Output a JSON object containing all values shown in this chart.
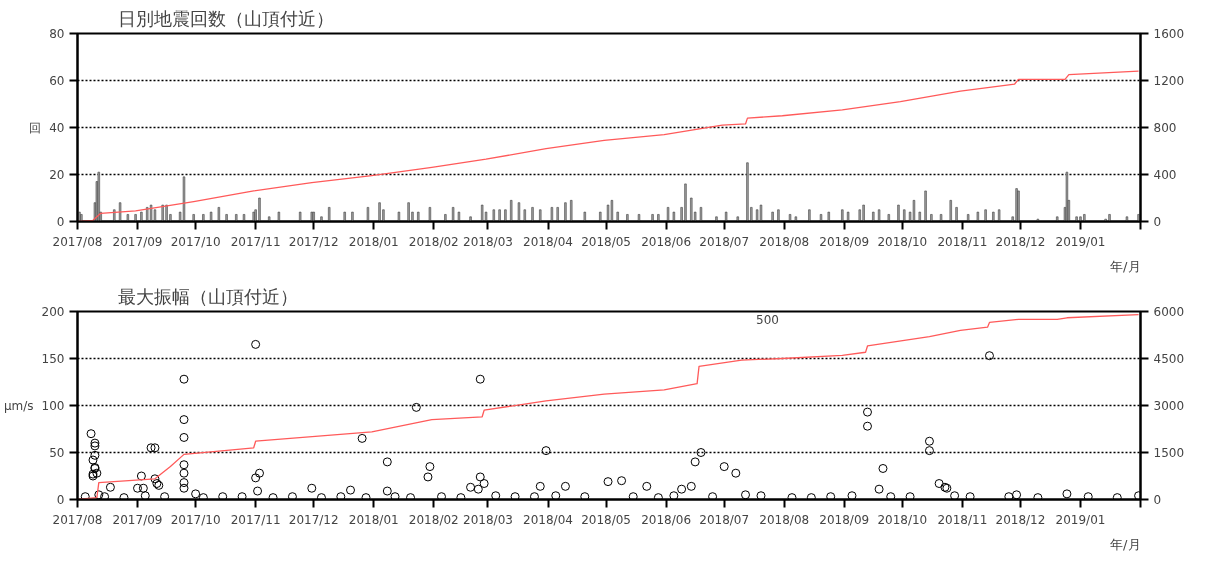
{
  "chart_data": [
    {
      "type": "bar",
      "title": "日別地震回数（山頂付近）",
      "ylabel": "回",
      "xlabel": "年/月",
      "grid": "y",
      "xlim": [
        "2017-08-01",
        "2019-02-01"
      ],
      "xticks": [
        {
          "value": "2017-08-01",
          "label": "2017/08"
        },
        {
          "value": "2017-09-01",
          "label": "2017/09"
        },
        {
          "value": "2017-10-01",
          "label": "2017/10"
        },
        {
          "value": "2017-11-01",
          "label": "2017/11"
        },
        {
          "value": "2017-12-01",
          "label": "2017/12"
        },
        {
          "value": "2018-01-01",
          "label": "2018/01"
        },
        {
          "value": "2018-02-01",
          "label": "2018/02"
        },
        {
          "value": "2018-03-01",
          "label": "2018/03"
        },
        {
          "value": "2018-04-01",
          "label": "2018/04"
        },
        {
          "value": "2018-05-01",
          "label": "2018/05"
        },
        {
          "value": "2018-06-01",
          "label": "2018/06"
        },
        {
          "value": "2018-07-01",
          "label": "2018/07"
        },
        {
          "value": "2018-08-01",
          "label": "2018/08"
        },
        {
          "value": "2018-09-01",
          "label": "2018/09"
        },
        {
          "value": "2018-10-01",
          "label": "2018/10"
        },
        {
          "value": "2018-11-01",
          "label": "2018/11"
        },
        {
          "value": "2018-12-01",
          "label": "2018/12"
        },
        {
          "value": "2019-01-01",
          "label": "2019/01"
        },
        {
          "value": "2019-02-01",
          "label": null
        }
      ],
      "ylim": [
        0,
        80
      ],
      "yticks": [
        0,
        20,
        40,
        60,
        80
      ],
      "y2lim": [
        0,
        1600
      ],
      "y2ticks": [
        0,
        400,
        800,
        1200,
        1600
      ],
      "series": [
        {
          "color": "#a0a0a0",
          "x": [
            "2017-08-02",
            "2017-08-03",
            "2017-08-10",
            "2017-08-11",
            "2017-08-12",
            "2017-08-13",
            "2017-08-20",
            "2017-08-23",
            "2017-08-27",
            "2017-08-31",
            "2017-09-03",
            "2017-09-06",
            "2017-09-08",
            "2017-09-10",
            "2017-09-14",
            "2017-09-16",
            "2017-09-18",
            "2017-09-23",
            "2017-09-25",
            "2017-09-30",
            "2017-10-05",
            "2017-10-09",
            "2017-10-13",
            "2017-10-17",
            "2017-10-22",
            "2017-10-26",
            "2017-10-31",
            "2017-11-01",
            "2017-11-03",
            "2017-11-08",
            "2017-11-13",
            "2017-11-24",
            "2017-11-30",
            "2017-12-01",
            "2017-12-05",
            "2017-12-09",
            "2017-12-17",
            "2017-12-21",
            "2017-12-29",
            "2018-01-04",
            "2018-01-06",
            "2018-01-14",
            "2018-01-19",
            "2018-01-21",
            "2018-01-24",
            "2018-01-30",
            "2018-02-07",
            "2018-02-11",
            "2018-02-14",
            "2018-02-20",
            "2018-02-26",
            "2018-02-28",
            "2018-03-04",
            "2018-03-07",
            "2018-03-10",
            "2018-03-13",
            "2018-03-17",
            "2018-03-20",
            "2018-03-24",
            "2018-03-28",
            "2018-04-03",
            "2018-04-06",
            "2018-04-10",
            "2018-04-13",
            "2018-04-20",
            "2018-04-28",
            "2018-05-02",
            "2018-05-04",
            "2018-05-07",
            "2018-05-12",
            "2018-05-18",
            "2018-05-25",
            "2018-05-28",
            "2018-06-02",
            "2018-06-05",
            "2018-06-09",
            "2018-06-11",
            "2018-06-14",
            "2018-06-16",
            "2018-06-19",
            "2018-06-27",
            "2018-07-02",
            "2018-07-08",
            "2018-07-13",
            "2018-07-15",
            "2018-07-18",
            "2018-07-20",
            "2018-07-26",
            "2018-07-29",
            "2018-08-04",
            "2018-08-07",
            "2018-08-14",
            "2018-08-20",
            "2018-08-24",
            "2018-08-31",
            "2018-09-03",
            "2018-09-09",
            "2018-09-11",
            "2018-09-16",
            "2018-09-19",
            "2018-09-24",
            "2018-09-29",
            "2018-10-02",
            "2018-10-05",
            "2018-10-07",
            "2018-10-10",
            "2018-10-13",
            "2018-10-16",
            "2018-10-21",
            "2018-10-26",
            "2018-10-29",
            "2018-11-04",
            "2018-11-09",
            "2018-11-13",
            "2018-11-17",
            "2018-11-20",
            "2018-11-27",
            "2018-11-29",
            "2018-11-30",
            "2018-12-10",
            "2018-12-20",
            "2018-12-24",
            "2018-12-25",
            "2018-12-26",
            "2018-12-30",
            "2019-01-01",
            "2019-01-03",
            "2019-01-14",
            "2019-01-16",
            "2019-01-25",
            "2019-01-31"
          ],
          "values": [
            4,
            3,
            8,
            17,
            21,
            4,
            5,
            8,
            3,
            3,
            4,
            6,
            7,
            5,
            7,
            7,
            3,
            4,
            19,
            3,
            3,
            4,
            6,
            3,
            3,
            3,
            4,
            5,
            10,
            2,
            4,
            4,
            4,
            4,
            2,
            6,
            4,
            4,
            6,
            8,
            5,
            4,
            8,
            4,
            4,
            6,
            3,
            6,
            4,
            2,
            7,
            4,
            5,
            5,
            5,
            9,
            8,
            5,
            6,
            5,
            6,
            6,
            8,
            9,
            4,
            4,
            7,
            9,
            4,
            3,
            3,
            3,
            3,
            6,
            4,
            6,
            16,
            10,
            4,
            6,
            2,
            4,
            2,
            25,
            6,
            5,
            7,
            4,
            5,
            3,
            2,
            5,
            3,
            4,
            5,
            4,
            5,
            7,
            4,
            5,
            3,
            7,
            5,
            4,
            9,
            4,
            13,
            3,
            3,
            9,
            6,
            3,
            4,
            5,
            4,
            5,
            2,
            14,
            13,
            1,
            2,
            6,
            21,
            9,
            2,
            2,
            3,
            1,
            3,
            2,
            3
          ]
        },
        {
          "type": "line",
          "axis": "y2",
          "color": "#ff5a5a",
          "x": [
            "2017-08-01",
            "2017-08-09",
            "2017-08-13",
            "2017-08-31",
            "2017-09-30",
            "2017-10-31",
            "2017-11-30",
            "2017-12-31",
            "2018-01-31",
            "2018-02-28",
            "2018-03-31",
            "2018-04-30",
            "2018-05-31",
            "2018-06-30",
            "2018-07-12",
            "2018-07-13",
            "2018-07-31",
            "2018-08-31",
            "2018-09-30",
            "2018-10-31",
            "2018-11-28",
            "2018-11-30",
            "2018-12-24",
            "2018-12-26",
            "2019-01-31"
          ],
          "values": [
            0,
            10,
            70,
            90,
            170,
            260,
            330,
            390,
            460,
            530,
            620,
            690,
            740,
            820,
            830,
            880,
            900,
            950,
            1020,
            1110,
            1170,
            1210,
            1210,
            1250,
            1280
          ]
        }
      ]
    },
    {
      "type": "scatter",
      "title": "最大振幅（山頂付近）",
      "ylabel": "μm/s",
      "xlabel": "年/月",
      "grid": "y",
      "marker": "circle",
      "xlim": [
        "2017-08-01",
        "2019-02-01"
      ],
      "xticks": [
        {
          "value": "2017-08-01",
          "label": "2017/08"
        },
        {
          "value": "2017-09-01",
          "label": "2017/09"
        },
        {
          "value": "2017-10-01",
          "label": "2017/10"
        },
        {
          "value": "2017-11-01",
          "label": "2017/11"
        },
        {
          "value": "2017-12-01",
          "label": "2017/12"
        },
        {
          "value": "2018-01-01",
          "label": "2018/01"
        },
        {
          "value": "2018-02-01",
          "label": "2018/02"
        },
        {
          "value": "2018-03-01",
          "label": "2018/03"
        },
        {
          "value": "2018-04-01",
          "label": "2018/04"
        },
        {
          "value": "2018-05-01",
          "label": "2018/05"
        },
        {
          "value": "2018-06-01",
          "label": "2018/06"
        },
        {
          "value": "2018-07-01",
          "label": "2018/07"
        },
        {
          "value": "2018-08-01",
          "label": "2018/08"
        },
        {
          "value": "2018-09-01",
          "label": "2018/09"
        },
        {
          "value": "2018-10-01",
          "label": "2018/10"
        },
        {
          "value": "2018-11-01",
          "label": "2018/11"
        },
        {
          "value": "2018-12-01",
          "label": "2018/12"
        },
        {
          "value": "2019-01-01",
          "label": "2019/01"
        },
        {
          "value": "2019-02-01",
          "label": null
        }
      ],
      "ylim": [
        0,
        200
      ],
      "yticks": [
        0,
        50,
        100,
        150,
        200
      ],
      "y2lim": [
        0,
        6000
      ],
      "y2ticks": [
        0,
        1500,
        3000,
        4500,
        6000
      ],
      "annotations": [
        "500"
      ],
      "series": [
        {
          "color": "#000000",
          "x": [
            "2017-08-08",
            "2017-08-09",
            "2017-08-09",
            "2017-08-09",
            "2017-08-10",
            "2017-08-10",
            "2017-08-10",
            "2017-08-10",
            "2017-08-10",
            "2017-08-11",
            "2017-08-12",
            "2017-08-18",
            "2017-09-01",
            "2017-09-03",
            "2017-09-04",
            "2017-09-08",
            "2017-09-10",
            "2017-09-10",
            "2017-09-11",
            "2017-09-12",
            "2017-09-25",
            "2017-09-25",
            "2017-09-25",
            "2017-09-25",
            "2017-09-25",
            "2017-09-25",
            "2017-09-25",
            "2017-10-01",
            "2017-11-01",
            "2017-11-01",
            "2017-11-02",
            "2017-11-03",
            "2017-11-30",
            "2017-12-20",
            "2017-12-26",
            "2018-01-08",
            "2018-01-08",
            "2018-01-23",
            "2018-01-29",
            "2018-01-30",
            "2018-02-20",
            "2018-02-24",
            "2018-02-25",
            "2018-02-25",
            "2018-02-27",
            "2018-03-28",
            "2018-03-31",
            "2018-04-10",
            "2018-05-02",
            "2018-05-09",
            "2018-05-22",
            "2018-06-09",
            "2018-06-14",
            "2018-06-16",
            "2018-06-19",
            "2018-07-01",
            "2018-07-07",
            "2018-09-13",
            "2018-09-13",
            "2018-09-19",
            "2018-09-21",
            "2018-10-15",
            "2018-10-15",
            "2018-10-20",
            "2018-10-23",
            "2018-10-24",
            "2018-11-15",
            "2017-08-05",
            "2017-08-15",
            "2017-08-25",
            "2017-09-05",
            "2017-09-15",
            "2017-10-05",
            "2017-10-15",
            "2017-10-25",
            "2017-11-10",
            "2017-11-20",
            "2017-12-05",
            "2017-12-15",
            "2017-12-28",
            "2018-01-12",
            "2018-01-20",
            "2018-02-05",
            "2018-02-15",
            "2018-03-05",
            "2018-03-15",
            "2018-03-25",
            "2018-04-05",
            "2018-04-20",
            "2018-05-15",
            "2018-05-28",
            "2018-06-05",
            "2018-06-25",
            "2018-07-12",
            "2018-07-20",
            "2018-08-05",
            "2018-08-15",
            "2018-08-25",
            "2018-09-05",
            "2018-09-25",
            "2018-10-05",
            "2018-10-28",
            "2018-11-05",
            "2018-11-25",
            "2018-11-29",
            "2018-12-10",
            "2018-12-25",
            "2019-01-05",
            "2019-01-20",
            "2019-01-31"
          ],
          "values": [
            70,
            42,
            27,
            25,
            60,
            57,
            47,
            34,
            33,
            28,
            5,
            13,
            12,
            25,
            12,
            55,
            55,
            22,
            17,
            15,
            128,
            85,
            66,
            37,
            28,
            18,
            12,
            6,
            165,
            23,
            9,
            28,
            12,
            10,
            65,
            40,
            9,
            98,
            24,
            35,
            13,
            11,
            128,
            24,
            17,
            14,
            52,
            14,
            19,
            20,
            14,
            11,
            14,
            40,
            50,
            35,
            28,
            93,
            78,
            11,
            33,
            62,
            52,
            17,
            13,
            12,
            153,
            3,
            3,
            2,
            4,
            3,
            2,
            3,
            3,
            2,
            3,
            2,
            3,
            2,
            3,
            2,
            3,
            2,
            4,
            3,
            3,
            4,
            3,
            3,
            2,
            4,
            3,
            5,
            4,
            2,
            2,
            3,
            4,
            3,
            3,
            4,
            3,
            3,
            5,
            2,
            6,
            3,
            2,
            4
          ]
        },
        {
          "type": "line",
          "axis": "y2",
          "color": "#ff5a5a",
          "x": [
            "2017-08-01",
            "2017-08-11",
            "2017-08-12",
            "2017-09-10",
            "2017-09-18",
            "2017-09-25",
            "2017-10-31",
            "2017-11-01",
            "2017-12-31",
            "2018-01-31",
            "2018-02-26",
            "2018-02-27",
            "2018-03-31",
            "2018-04-30",
            "2018-05-31",
            "2018-06-17",
            "2018-06-18",
            "2018-07-10",
            "2018-07-31",
            "2018-08-31",
            "2018-09-12",
            "2018-09-13",
            "2018-10-15",
            "2018-10-31",
            "2018-11-14",
            "2018-11-15",
            "2018-11-30",
            "2018-12-20",
            "2018-12-25",
            "2019-01-31"
          ],
          "marker": "none",
          "values": [
            0,
            60,
            540,
            660,
            1050,
            1440,
            1650,
            1860,
            2160,
            2550,
            2640,
            2850,
            3150,
            3360,
            3500,
            3700,
            4250,
            4450,
            4500,
            4600,
            4700,
            4900,
            5200,
            5400,
            5500,
            5650,
            5750,
            5750,
            5800,
            5900
          ]
        }
      ]
    }
  ]
}
